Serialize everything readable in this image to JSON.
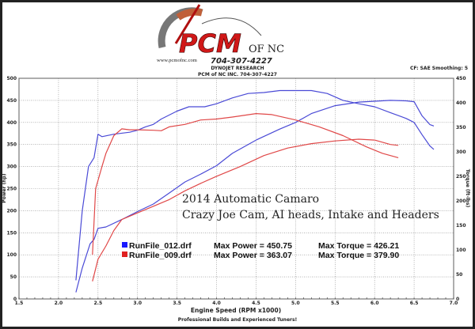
{
  "header": {
    "logo_text": "PCM",
    "logo_suffix": "OF NC",
    "logo_phone": "704-307-4227",
    "logo_url": "www.pcmofnc.com",
    "line1": "DYNOJET RESEARCH",
    "line2": "PCM of NC INC. 704-307-4227",
    "settings": "CF: SAE  Smoothing: 5"
  },
  "footer": "Professional Builds and Experienced Tuners!",
  "chart_data": {
    "type": "line",
    "xlabel": "Engine Speed (RPM x1000)",
    "ylabel": "Power (hp)",
    "y2label": "Torque (ft-lbs)",
    "xlim": [
      1.5,
      7.0
    ],
    "ylim": [
      0,
      500
    ],
    "y2lim": [
      0,
      450
    ],
    "xticks": [
      "1.5",
      "2.0",
      "2.5",
      "3.0",
      "3.5",
      "4.0",
      "4.5",
      "5.0",
      "5.5",
      "6.0",
      "6.5",
      "7.0"
    ],
    "yticks": [
      "0",
      "50",
      "100",
      "150",
      "200",
      "250",
      "300",
      "350",
      "400",
      "450",
      "500"
    ],
    "y2ticks": [
      "0",
      "50",
      "100",
      "150",
      "200",
      "250",
      "300",
      "350",
      "400",
      "450"
    ],
    "grid": true,
    "annotation": [
      "2014 Automatic Camaro",
      "Crazy Joe Cam, AI heads, Intake and Headers"
    ],
    "legend_position": "center-left",
    "legend": [
      {
        "file": "RunFile_012.drf",
        "power_label": "Max Power = 450.75",
        "torque_label": "Max Torque = 426.21",
        "color": "#1a1aff"
      },
      {
        "file": "RunFile_009.drf",
        "power_label": "Max Power = 363.07",
        "torque_label": "Max Torque = 379.90",
        "color": "#e02020"
      }
    ],
    "series": [
      {
        "name": "RunFile_012.drf",
        "measure": "power",
        "axis": "left",
        "color": "#4a4ad6",
        "x": [
          2.22,
          2.3,
          2.4,
          2.45,
          2.5,
          2.6,
          2.8,
          3.0,
          3.2,
          3.4,
          3.6,
          3.8,
          4.0,
          4.2,
          4.5,
          4.8,
          5.0,
          5.2,
          5.5,
          5.8,
          6.0,
          6.2,
          6.4,
          6.5,
          6.6,
          6.7,
          6.75
        ],
        "y": [
          15,
          70,
          125,
          135,
          160,
          163,
          180,
          198,
          215,
          240,
          265,
          283,
          302,
          330,
          360,
          385,
          400,
          420,
          438,
          446,
          448,
          450,
          449,
          447,
          415,
          395,
          392
        ]
      },
      {
        "name": "RunFile_012.drf",
        "measure": "torque",
        "axis": "right",
        "color": "#4a4ad6",
        "x": [
          2.22,
          2.3,
          2.38,
          2.45,
          2.5,
          2.55,
          2.7,
          2.9,
          3.0,
          3.1,
          3.2,
          3.3,
          3.5,
          3.65,
          3.85,
          4.0,
          4.2,
          4.4,
          4.6,
          4.8,
          5.0,
          5.2,
          5.4,
          5.6,
          5.8,
          6.0,
          6.2,
          6.4,
          6.5,
          6.6,
          6.7,
          6.75
        ],
        "y": [
          38,
          180,
          270,
          288,
          336,
          331,
          336,
          340,
          344,
          351,
          356,
          367,
          383,
          392,
          392,
          398,
          410,
          419,
          421,
          425,
          425,
          425,
          419,
          405,
          398,
          392,
          380,
          368,
          360,
          335,
          312,
          305
        ]
      },
      {
        "name": "RunFile_009.drf",
        "measure": "power",
        "axis": "left",
        "color": "#e04848",
        "x": [
          2.43,
          2.5,
          2.6,
          2.7,
          2.8,
          3.0,
          3.2,
          3.4,
          3.6,
          3.8,
          4.0,
          4.3,
          4.6,
          4.9,
          5.2,
          5.5,
          5.8,
          6.0,
          6.2,
          6.3
        ],
        "y": [
          40,
          90,
          120,
          155,
          180,
          195,
          210,
          225,
          245,
          262,
          278,
          300,
          325,
          342,
          352,
          358,
          362,
          360,
          350,
          348
        ]
      },
      {
        "name": "RunFile_009.drf",
        "measure": "torque",
        "axis": "right",
        "color": "#e04848",
        "x": [
          2.43,
          2.47,
          2.55,
          2.6,
          2.7,
          2.8,
          2.9,
          3.0,
          3.2,
          3.3,
          3.4,
          3.6,
          3.8,
          4.0,
          4.2,
          4.5,
          4.7,
          5.0,
          5.3,
          5.6,
          5.9,
          6.1,
          6.3
        ],
        "y": [
          90,
          225,
          270,
          297,
          333,
          347,
          345,
          345,
          344,
          343,
          351,
          356,
          365,
          367,
          371,
          378,
          376,
          365,
          351,
          333,
          310,
          297,
          288
        ]
      }
    ]
  }
}
